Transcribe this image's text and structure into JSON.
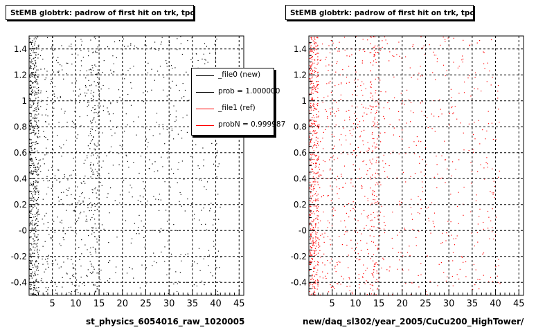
{
  "chart_data": [
    {
      "type": "scatter",
      "title": "StEMB globtrk: padrow of first hit on trk, tpc",
      "xlabel": "st_physics_6054016_raw_1020005",
      "ylabel": "",
      "xlim": [
        0,
        46
      ],
      "ylim": [
        -0.5,
        1.5
      ],
      "x_ticks": [
        "5",
        "10",
        "15",
        "20",
        "25",
        "30",
        "35",
        "40",
        "45"
      ],
      "y_ticks": [
        "-0.4",
        "-0.2",
        "-0",
        "0.2",
        "0.4",
        "0.6",
        "0.8",
        "1",
        "1.2",
        "1.4"
      ],
      "grid": true,
      "marker_color": "#000000",
      "density_profile": {
        "bands": [
          {
            "x_from": 0,
            "x_to": 2,
            "relative_density": 1.0
          },
          {
            "x_from": 2,
            "x_to": 13,
            "relative_density": 0.12
          },
          {
            "x_from": 13,
            "x_to": 15,
            "relative_density": 0.35
          },
          {
            "x_from": 15,
            "x_to": 41,
            "relative_density": 0.06
          }
        ]
      },
      "legend": {
        "position": "top-right",
        "entries": [
          {
            "label": "_file0 (new)",
            "color": "#000000"
          },
          {
            "label": "prob = 1.000000",
            "color": "#000000"
          },
          {
            "label": "_file1 (ref)",
            "color": "#ff0000"
          },
          {
            "label": "probN = 0.999987",
            "color": "#ff0000"
          }
        ]
      }
    },
    {
      "type": "scatter",
      "title": "StEMB globtrk: padrow of first hit on trk, tpc",
      "xlabel": "new/daq_sl302/year_2005/CuCu200_HighTower/",
      "ylabel": "",
      "xlim": [
        0,
        46
      ],
      "ylim": [
        -0.5,
        1.5
      ],
      "x_ticks": [
        "5",
        "10",
        "15",
        "20",
        "25",
        "30",
        "35",
        "40",
        "45"
      ],
      "y_ticks": [
        "-0.4",
        "-0.2",
        "-0",
        "0.2",
        "0.4",
        "0.6",
        "0.8",
        "1",
        "1.2",
        "1.4"
      ],
      "grid": true,
      "marker_color": "#ff0000",
      "density_profile": {
        "bands": [
          {
            "x_from": 0,
            "x_to": 2,
            "relative_density": 1.0
          },
          {
            "x_from": 2,
            "x_to": 13,
            "relative_density": 0.12
          },
          {
            "x_from": 13,
            "x_to": 15,
            "relative_density": 0.35
          },
          {
            "x_from": 15,
            "x_to": 41,
            "relative_density": 0.06
          }
        ]
      }
    }
  ]
}
